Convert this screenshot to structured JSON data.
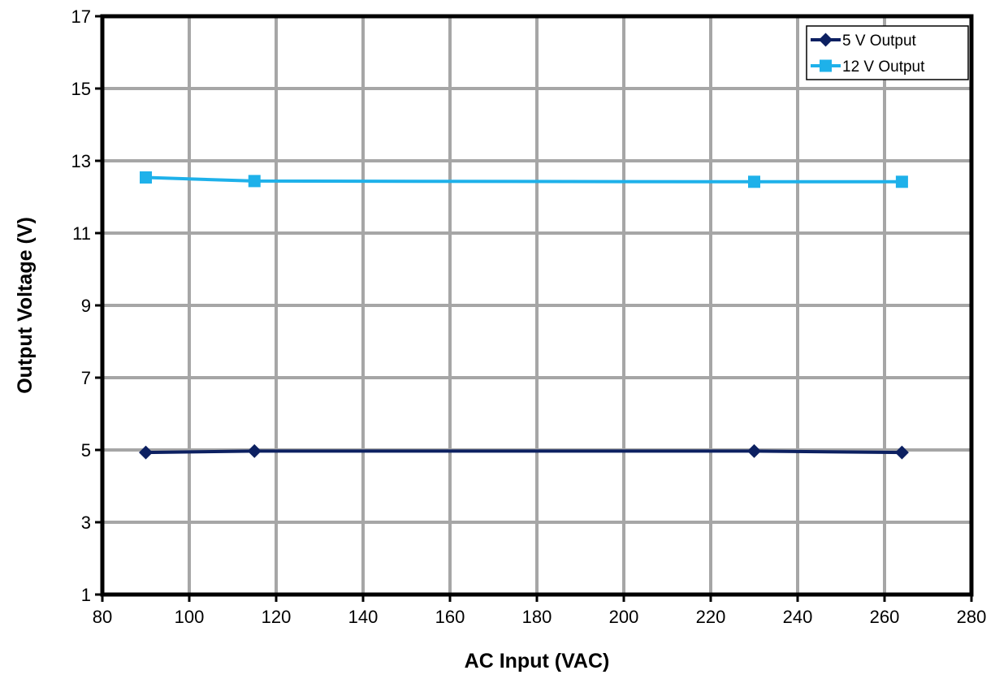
{
  "chart_data": {
    "type": "line",
    "title": "",
    "xlabel": "AC Input (VAC)",
    "ylabel": "Output Voltage (V)",
    "xlim": [
      80,
      280
    ],
    "ylim": [
      1,
      17
    ],
    "xticks": [
      80,
      100,
      120,
      140,
      160,
      180,
      200,
      220,
      240,
      260,
      280
    ],
    "yticks": [
      1,
      3,
      5,
      7,
      9,
      11,
      13,
      15,
      17
    ],
    "grid": true,
    "legend_position": "top-right",
    "series": [
      {
        "name": "5 V Output",
        "color": "#0c2061",
        "marker": "diamond",
        "x": [
          90,
          115,
          230,
          264
        ],
        "y": [
          4.93,
          4.97,
          4.97,
          4.93
        ]
      },
      {
        "name": "12 V Output",
        "color": "#1eb1ea",
        "marker": "square",
        "x": [
          90,
          115,
          230,
          264
        ],
        "y": [
          12.54,
          12.44,
          12.42,
          12.42
        ]
      }
    ]
  }
}
